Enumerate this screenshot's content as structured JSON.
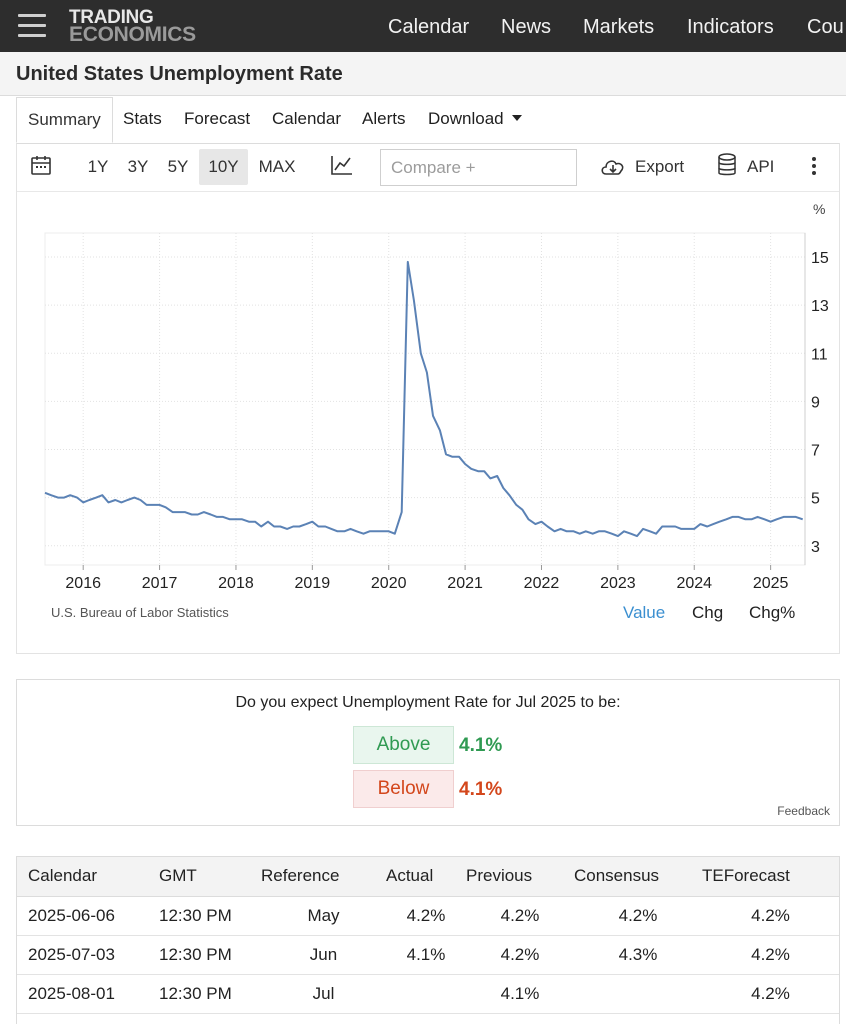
{
  "header": {
    "logo_line1": "TRADING",
    "logo_line2": "ECONOMICS",
    "nav": [
      "Calendar",
      "News",
      "Markets",
      "Indicators",
      "Cou"
    ]
  },
  "page_title": "United States Unemployment Rate",
  "tabs": [
    "Summary",
    "Stats",
    "Forecast",
    "Calendar",
    "Alerts",
    "Download"
  ],
  "active_tab": "Summary",
  "toolbar": {
    "ranges": [
      "1Y",
      "3Y",
      "5Y",
      "10Y",
      "MAX"
    ],
    "active_range": "10Y",
    "compare_placeholder": "Compare +",
    "export_label": "Export",
    "api_label": "API"
  },
  "chart": {
    "unit": "%",
    "source": "U.S. Bureau of Labor Statistics",
    "modes": [
      "Value",
      "Chg",
      "Chg%"
    ],
    "active_mode": "Value"
  },
  "chart_data": {
    "type": "line",
    "x_unit": "year",
    "y_ticks": [
      3,
      5,
      7,
      9,
      11,
      13,
      15
    ],
    "x_ticks": [
      "2016",
      "2017",
      "2018",
      "2019",
      "2020",
      "2021",
      "2022",
      "2023",
      "2024",
      "2025"
    ],
    "ylim": [
      2.2,
      16.0
    ],
    "xlim": [
      2015.5,
      2025.45
    ],
    "grid": true,
    "series": [
      {
        "values": [
          [
            2015.5,
            5.2
          ],
          [
            2015.58,
            5.1
          ],
          [
            2015.67,
            5.0
          ],
          [
            2015.75,
            5.0
          ],
          [
            2015.83,
            5.1
          ],
          [
            2015.92,
            5.0
          ],
          [
            2016.0,
            4.8
          ],
          [
            2016.08,
            4.9
          ],
          [
            2016.17,
            5.0
          ],
          [
            2016.25,
            5.1
          ],
          [
            2016.33,
            4.8
          ],
          [
            2016.42,
            4.9
          ],
          [
            2016.5,
            4.8
          ],
          [
            2016.58,
            4.9
          ],
          [
            2016.67,
            5.0
          ],
          [
            2016.75,
            4.9
          ],
          [
            2016.83,
            4.7
          ],
          [
            2016.92,
            4.7
          ],
          [
            2017.0,
            4.7
          ],
          [
            2017.08,
            4.6
          ],
          [
            2017.17,
            4.4
          ],
          [
            2017.25,
            4.4
          ],
          [
            2017.33,
            4.4
          ],
          [
            2017.42,
            4.3
          ],
          [
            2017.5,
            4.3
          ],
          [
            2017.58,
            4.4
          ],
          [
            2017.67,
            4.3
          ],
          [
            2017.75,
            4.2
          ],
          [
            2017.83,
            4.2
          ],
          [
            2017.92,
            4.1
          ],
          [
            2018.0,
            4.1
          ],
          [
            2018.08,
            4.1
          ],
          [
            2018.17,
            4.0
          ],
          [
            2018.25,
            4.0
          ],
          [
            2018.33,
            3.8
          ],
          [
            2018.42,
            4.0
          ],
          [
            2018.5,
            3.8
          ],
          [
            2018.58,
            3.8
          ],
          [
            2018.67,
            3.7
          ],
          [
            2018.75,
            3.8
          ],
          [
            2018.83,
            3.8
          ],
          [
            2018.92,
            3.9
          ],
          [
            2019.0,
            4.0
          ],
          [
            2019.08,
            3.8
          ],
          [
            2019.17,
            3.8
          ],
          [
            2019.25,
            3.7
          ],
          [
            2019.33,
            3.6
          ],
          [
            2019.42,
            3.6
          ],
          [
            2019.5,
            3.7
          ],
          [
            2019.58,
            3.6
          ],
          [
            2019.67,
            3.5
          ],
          [
            2019.75,
            3.6
          ],
          [
            2019.83,
            3.6
          ],
          [
            2019.92,
            3.6
          ],
          [
            2020.0,
            3.6
          ],
          [
            2020.08,
            3.5
          ],
          [
            2020.17,
            4.4
          ],
          [
            2020.25,
            14.8
          ],
          [
            2020.33,
            13.2
          ],
          [
            2020.42,
            11.0
          ],
          [
            2020.5,
            10.2
          ],
          [
            2020.58,
            8.4
          ],
          [
            2020.67,
            7.8
          ],
          [
            2020.75,
            6.8
          ],
          [
            2020.83,
            6.7
          ],
          [
            2020.92,
            6.7
          ],
          [
            2021.0,
            6.4
          ],
          [
            2021.08,
            6.2
          ],
          [
            2021.17,
            6.1
          ],
          [
            2021.25,
            6.1
          ],
          [
            2021.33,
            5.8
          ],
          [
            2021.42,
            5.9
          ],
          [
            2021.5,
            5.4
          ],
          [
            2021.58,
            5.1
          ],
          [
            2021.67,
            4.7
          ],
          [
            2021.75,
            4.5
          ],
          [
            2021.83,
            4.1
          ],
          [
            2021.92,
            3.9
          ],
          [
            2022.0,
            4.0
          ],
          [
            2022.08,
            3.8
          ],
          [
            2022.17,
            3.6
          ],
          [
            2022.25,
            3.7
          ],
          [
            2022.33,
            3.6
          ],
          [
            2022.42,
            3.6
          ],
          [
            2022.5,
            3.5
          ],
          [
            2022.58,
            3.6
          ],
          [
            2022.67,
            3.5
          ],
          [
            2022.75,
            3.6
          ],
          [
            2022.83,
            3.6
          ],
          [
            2022.92,
            3.5
          ],
          [
            2023.0,
            3.4
          ],
          [
            2023.08,
            3.6
          ],
          [
            2023.17,
            3.5
          ],
          [
            2023.25,
            3.4
          ],
          [
            2023.33,
            3.7
          ],
          [
            2023.42,
            3.6
          ],
          [
            2023.5,
            3.5
          ],
          [
            2023.58,
            3.8
          ],
          [
            2023.67,
            3.8
          ],
          [
            2023.75,
            3.8
          ],
          [
            2023.83,
            3.7
          ],
          [
            2023.92,
            3.7
          ],
          [
            2024.0,
            3.7
          ],
          [
            2024.08,
            3.9
          ],
          [
            2024.17,
            3.8
          ],
          [
            2024.25,
            3.9
          ],
          [
            2024.33,
            4.0
          ],
          [
            2024.42,
            4.1
          ],
          [
            2024.5,
            4.2
          ],
          [
            2024.58,
            4.2
          ],
          [
            2024.67,
            4.1
          ],
          [
            2024.75,
            4.1
          ],
          [
            2024.83,
            4.2
          ],
          [
            2024.92,
            4.1
          ],
          [
            2025.0,
            4.0
          ],
          [
            2025.08,
            4.1
          ],
          [
            2025.17,
            4.2
          ],
          [
            2025.25,
            4.2
          ],
          [
            2025.33,
            4.2
          ],
          [
            2025.42,
            4.1
          ]
        ]
      }
    ],
    "color": "#5b82b5"
  },
  "poll": {
    "question": "Do you expect Unemployment Rate for Jul 2025 to be:",
    "above_label": "Above",
    "above_value": "4.1%",
    "below_label": "Below",
    "below_value": "4.1%",
    "feedback": "Feedback",
    "colors": {
      "above": "#2f9a52",
      "below": "#d3471c"
    }
  },
  "calendar": {
    "columns": [
      "Calendar",
      "GMT",
      "Reference",
      "Actual",
      "Previous",
      "Consensus",
      "TEForecast"
    ],
    "rows": [
      [
        "2025-06-06",
        "12:30 PM",
        "May",
        "4.2%",
        "4.2%",
        "4.2%",
        "4.2%"
      ],
      [
        "2025-07-03",
        "12:30 PM",
        "Jun",
        "4.1%",
        "4.2%",
        "4.3%",
        "4.2%"
      ],
      [
        "2025-08-01",
        "12:30 PM",
        "Jul",
        "",
        "4.1%",
        "",
        "4.2%"
      ]
    ]
  }
}
